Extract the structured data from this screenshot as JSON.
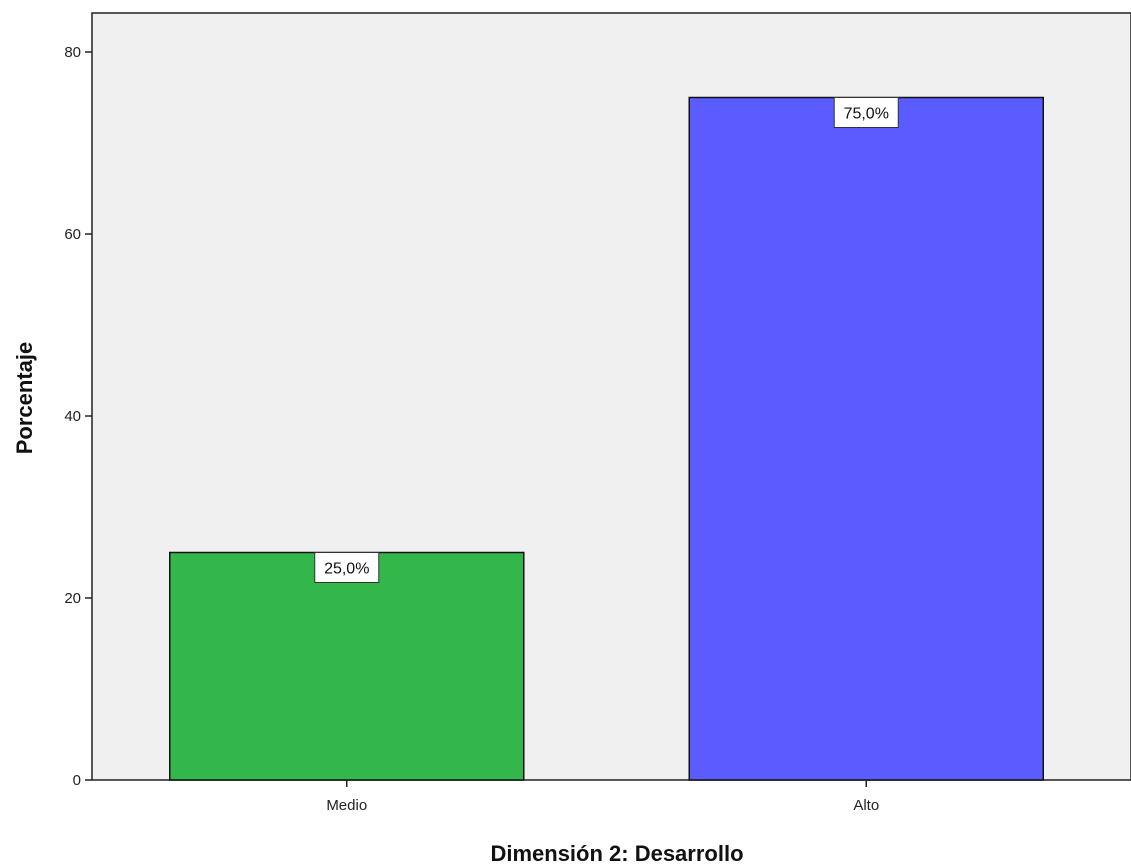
{
  "chart_data": {
    "type": "bar",
    "categories": [
      "Medio",
      "Alto"
    ],
    "values": [
      25.0,
      75.0
    ],
    "data_labels": [
      "25,0%",
      "75,0%"
    ],
    "colors": [
      "#33b74a",
      "#5a5cff"
    ],
    "title": "",
    "xlabel": "Dimensión 2: Desarrollo",
    "ylabel": "Porcentaje",
    "ylim": [
      0,
      80
    ],
    "yticks": [
      0,
      20,
      40,
      60,
      80
    ],
    "ytick_labels": [
      "0",
      "20",
      "40",
      "60",
      "80"
    ],
    "grid": false,
    "legend": "none",
    "plot_background": "#f0f0f0"
  }
}
